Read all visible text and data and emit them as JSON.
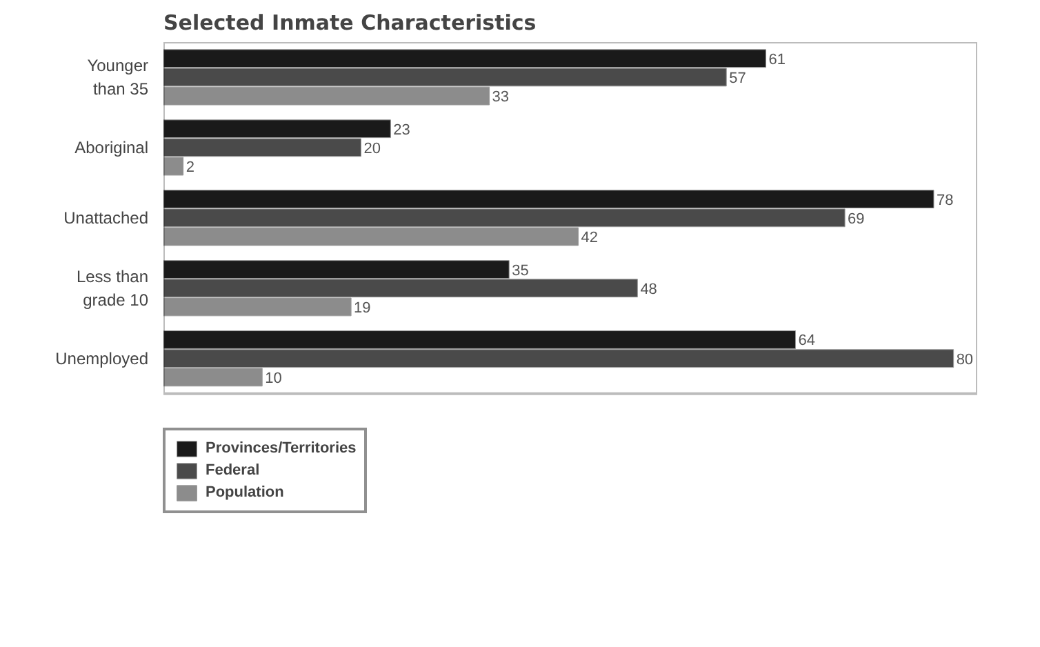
{
  "chart_data": {
    "type": "bar",
    "orientation": "horizontal",
    "title": "Selected Inmate Characteristics",
    "categories": [
      "Younger than 35",
      "Aboriginal",
      "Unattached",
      "Less than grade 10",
      "Unemployed"
    ],
    "series": [
      {
        "name": "Provinces/Territories",
        "color": "#1a1a1a",
        "values": [
          61,
          23,
          78,
          35,
          64
        ]
      },
      {
        "name": "Federal",
        "color": "#4a4a4a",
        "values": [
          57,
          20,
          69,
          48,
          80
        ]
      },
      {
        "name": "Population",
        "color": "#8c8c8c",
        "values": [
          33,
          2,
          42,
          19,
          10
        ]
      }
    ],
    "data_labels": true,
    "legend": "bottom left",
    "grid": false
  }
}
